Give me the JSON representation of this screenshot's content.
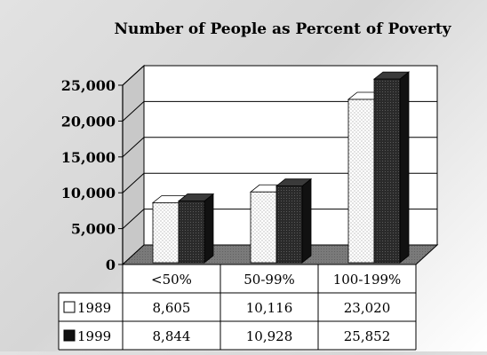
{
  "chart_data": {
    "type": "bar",
    "title": "Number of People as Percent of Poverty",
    "categories": [
      "<50%",
      "50-99%",
      "100-199%"
    ],
    "series": [
      {
        "name": "1989",
        "values": [
          8605,
          10116,
          23020
        ],
        "color": "#ffffff"
      },
      {
        "name": "1999",
        "values": [
          8844,
          10928,
          25852
        ],
        "color": "#2a2a2a"
      }
    ],
    "table_values": [
      [
        "8,605",
        "10,116",
        "23,020"
      ],
      [
        "8,844",
        "10,928",
        "25,852"
      ]
    ],
    "ylim": [
      0,
      25000
    ],
    "yticks": [
      "0",
      "5,000",
      "10,000",
      "15,000",
      "20,000",
      "25,000"
    ],
    "ytick_values": [
      0,
      5000,
      10000,
      15000,
      20000,
      25000
    ],
    "grid": true,
    "floor_color": "#808080",
    "legend": "data-table"
  }
}
